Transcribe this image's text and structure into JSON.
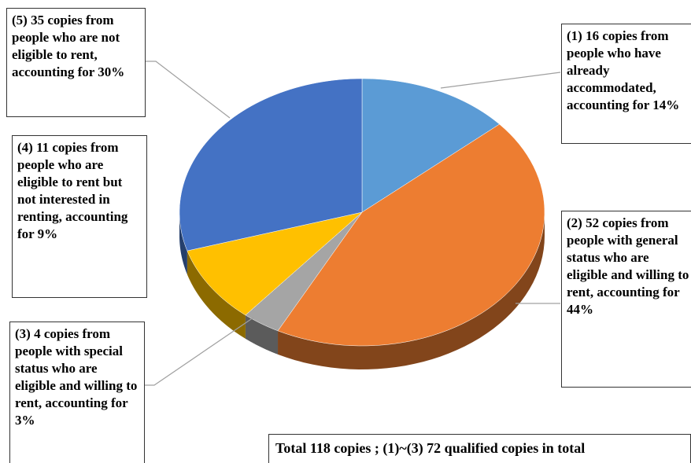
{
  "chart_data": {
    "type": "pie",
    "categories": [
      "(1) 16 copies from people who have already accommodated, accounting for 14%",
      "(2) 52 copies from people with general status who are eligible and willing to rent, accounting for 44%",
      "(3) 4 copies from people with special status who are eligible and willing to rent, accounting for 3%",
      "(4) 11 copies from people who are eligible to rent but not interested in renting, accounting for 9%",
      "(5) 35 copies from people who are not eligible to rent, accounting for 30%"
    ],
    "values": [
      16,
      52,
      4,
      11,
      35
    ],
    "colors": [
      "#5b9bd5",
      "#ed7d31",
      "#a5a5a5",
      "#ffc000",
      "#4472c4"
    ],
    "note": "Total 118 copies ; (1)~(3) 72 qualified copies in total"
  }
}
